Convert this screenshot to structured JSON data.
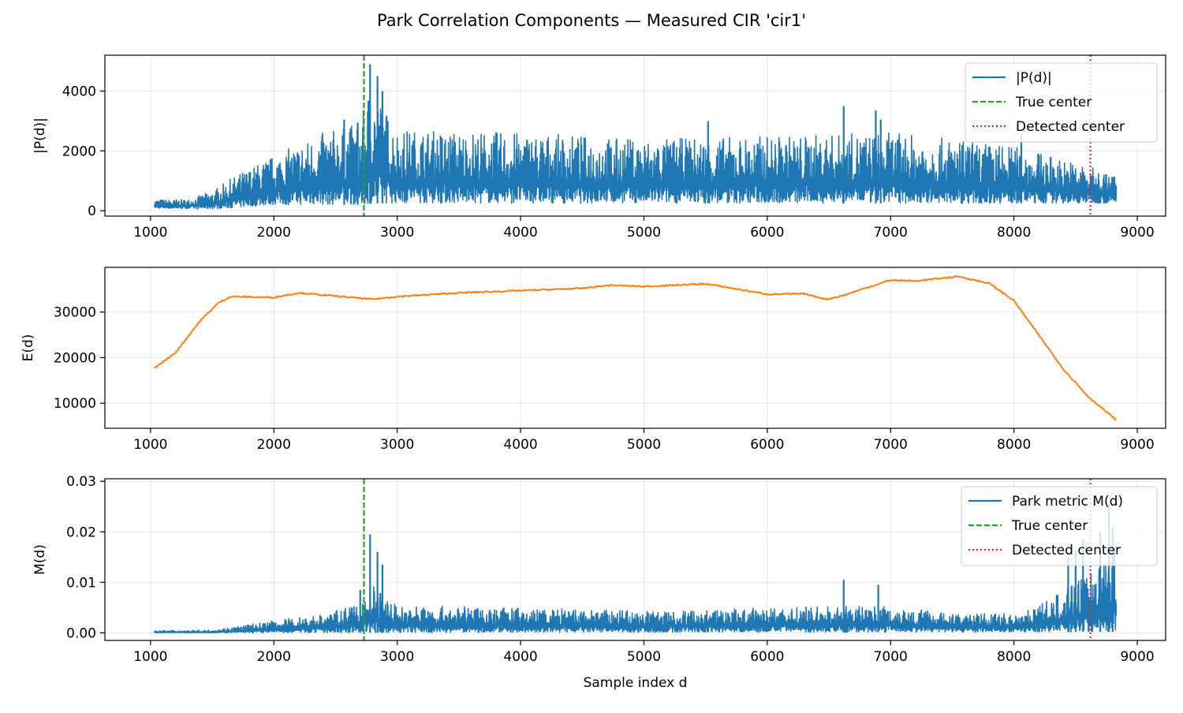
{
  "figure": {
    "title": "Park Correlation Components — Measured CIR 'cir1'"
  },
  "colors": {
    "series_p": "#1f77b4",
    "series_e": "#ff7f0e",
    "series_m": "#1f77b4",
    "true_center": "#2ca02c",
    "detected_center": "#d62728",
    "grid": "#b0b0b0"
  },
  "markers": {
    "true_center": 2730,
    "detected_center": 8620
  },
  "chart_data": [
    {
      "type": "line",
      "ylabel": "|P(d)|",
      "xlabel": "",
      "xlim": [
        630,
        9230
      ],
      "ylim": [
        -180,
        5200
      ],
      "xticks": [
        1000,
        2000,
        3000,
        4000,
        5000,
        6000,
        7000,
        8000,
        9000
      ],
      "yticks": [
        0,
        2000,
        4000
      ],
      "grid": true,
      "legend": {
        "placement": "upper-right",
        "entries": [
          {
            "label": "|P(d)|",
            "style": "solid",
            "color": "#1f77b4"
          },
          {
            "label": "True center",
            "style": "dashed",
            "color": "#2ca02c"
          },
          {
            "label": "Detected center",
            "style": "dotted",
            "color": "#d62728"
          }
        ]
      },
      "series": [
        {
          "name": "|P(d)|",
          "style": "noisy",
          "x_range": [
            1030,
            8830
          ],
          "lower": [
            [
              1030,
              80
            ],
            [
              1500,
              60
            ],
            [
              1700,
              100
            ],
            [
              2000,
              200
            ],
            [
              2700,
              200
            ],
            [
              2800,
              250
            ],
            [
              8830,
              250
            ]
          ],
          "upper": [
            [
              1030,
              350
            ],
            [
              1300,
              350
            ],
            [
              1500,
              600
            ],
            [
              1700,
              1100
            ],
            [
              2000,
              1700
            ],
            [
              2400,
              2400
            ],
            [
              2700,
              2700
            ],
            [
              2780,
              3900
            ],
            [
              3000,
              2500
            ],
            [
              4000,
              2400
            ],
            [
              5000,
              2200
            ],
            [
              6000,
              2300
            ],
            [
              7000,
              2400
            ],
            [
              8000,
              2000
            ],
            [
              8500,
              1500
            ],
            [
              8830,
              1100
            ]
          ],
          "peaks": [
            [
              2780,
              4900
            ],
            [
              2840,
              4500
            ],
            [
              2880,
              4000
            ],
            [
              2680,
              2950
            ],
            [
              6620,
              3500
            ],
            [
              6880,
              3350
            ],
            [
              6920,
              3050
            ],
            [
              5520,
              3000
            ],
            [
              2570,
              3050
            ],
            [
              8060,
              2550
            ]
          ]
        }
      ]
    },
    {
      "type": "line",
      "ylabel": "E(d)",
      "xlabel": "",
      "xlim": [
        630,
        9230
      ],
      "ylim": [
        4500,
        39800
      ],
      "xticks": [
        1000,
        2000,
        3000,
        4000,
        5000,
        6000,
        7000,
        8000,
        9000
      ],
      "yticks": [
        10000,
        20000,
        30000
      ],
      "grid": true,
      "series": [
        {
          "name": "",
          "style": "smooth",
          "points": [
            [
              1030,
              17700
            ],
            [
              1200,
              21000
            ],
            [
              1400,
              28000
            ],
            [
              1550,
              32000
            ],
            [
              1650,
              33400
            ],
            [
              2000,
              33200
            ],
            [
              2200,
              34200
            ],
            [
              2500,
              33500
            ],
            [
              2800,
              32800
            ],
            [
              3000,
              33400
            ],
            [
              3500,
              34200
            ],
            [
              4000,
              34700
            ],
            [
              4500,
              35200
            ],
            [
              4730,
              35900
            ],
            [
              5000,
              35600
            ],
            [
              5500,
              36200
            ],
            [
              5700,
              35300
            ],
            [
              6000,
              33900
            ],
            [
              6300,
              34000
            ],
            [
              6480,
              32800
            ],
            [
              6600,
              33500
            ],
            [
              6800,
              35300
            ],
            [
              7000,
              37000
            ],
            [
              7200,
              36800
            ],
            [
              7550,
              37800
            ],
            [
              7800,
              36300
            ],
            [
              8000,
              32500
            ],
            [
              8200,
              25000
            ],
            [
              8400,
              17500
            ],
            [
              8600,
              11500
            ],
            [
              8830,
              6300
            ]
          ]
        }
      ]
    },
    {
      "type": "line",
      "ylabel": "M(d)",
      "xlabel": "Sample index d",
      "xlim": [
        630,
        9230
      ],
      "ylim": [
        -0.0015,
        0.0305
      ],
      "xticks": [
        1000,
        2000,
        3000,
        4000,
        5000,
        6000,
        7000,
        8000,
        9000
      ],
      "yticks": [
        0.0,
        0.01,
        0.02,
        0.03
      ],
      "grid": true,
      "legend": {
        "placement": "upper-right",
        "entries": [
          {
            "label": "Park metric M(d)",
            "style": "solid",
            "color": "#1f77b4"
          },
          {
            "label": "True center",
            "style": "dashed",
            "color": "#2ca02c"
          },
          {
            "label": "Detected center",
            "style": "dotted",
            "color": "#d62728"
          }
        ]
      },
      "series": [
        {
          "name": "Park metric M(d)",
          "style": "noisy",
          "x_range": [
            1030,
            8830
          ],
          "lower": [
            [
              1030,
              0.0
            ],
            [
              8830,
              0.0002
            ]
          ],
          "upper": [
            [
              1030,
              0.0004
            ],
            [
              1500,
              0.0005
            ],
            [
              1700,
              0.0012
            ],
            [
              2000,
              0.0022
            ],
            [
              2400,
              0.0035
            ],
            [
              2700,
              0.005
            ],
            [
              2780,
              0.009
            ],
            [
              3000,
              0.005
            ],
            [
              4000,
              0.0045
            ],
            [
              5000,
              0.004
            ],
            [
              6000,
              0.0045
            ],
            [
              7000,
              0.005
            ],
            [
              7500,
              0.0035
            ],
            [
              8000,
              0.0035
            ],
            [
              8300,
              0.006
            ],
            [
              8600,
              0.011
            ],
            [
              8830,
              0.016
            ]
          ],
          "peaks": [
            [
              2780,
              0.0195
            ],
            [
              2840,
              0.016
            ],
            [
              2880,
              0.0135
            ],
            [
              2700,
              0.0085
            ],
            [
              6620,
              0.0105
            ],
            [
              6900,
              0.0095
            ],
            [
              8440,
              0.015
            ],
            [
              8500,
              0.0165
            ],
            [
              8560,
              0.0185
            ],
            [
              8700,
              0.02
            ],
            [
              8770,
              0.0255
            ],
            [
              8800,
              0.021
            ]
          ]
        }
      ]
    }
  ]
}
